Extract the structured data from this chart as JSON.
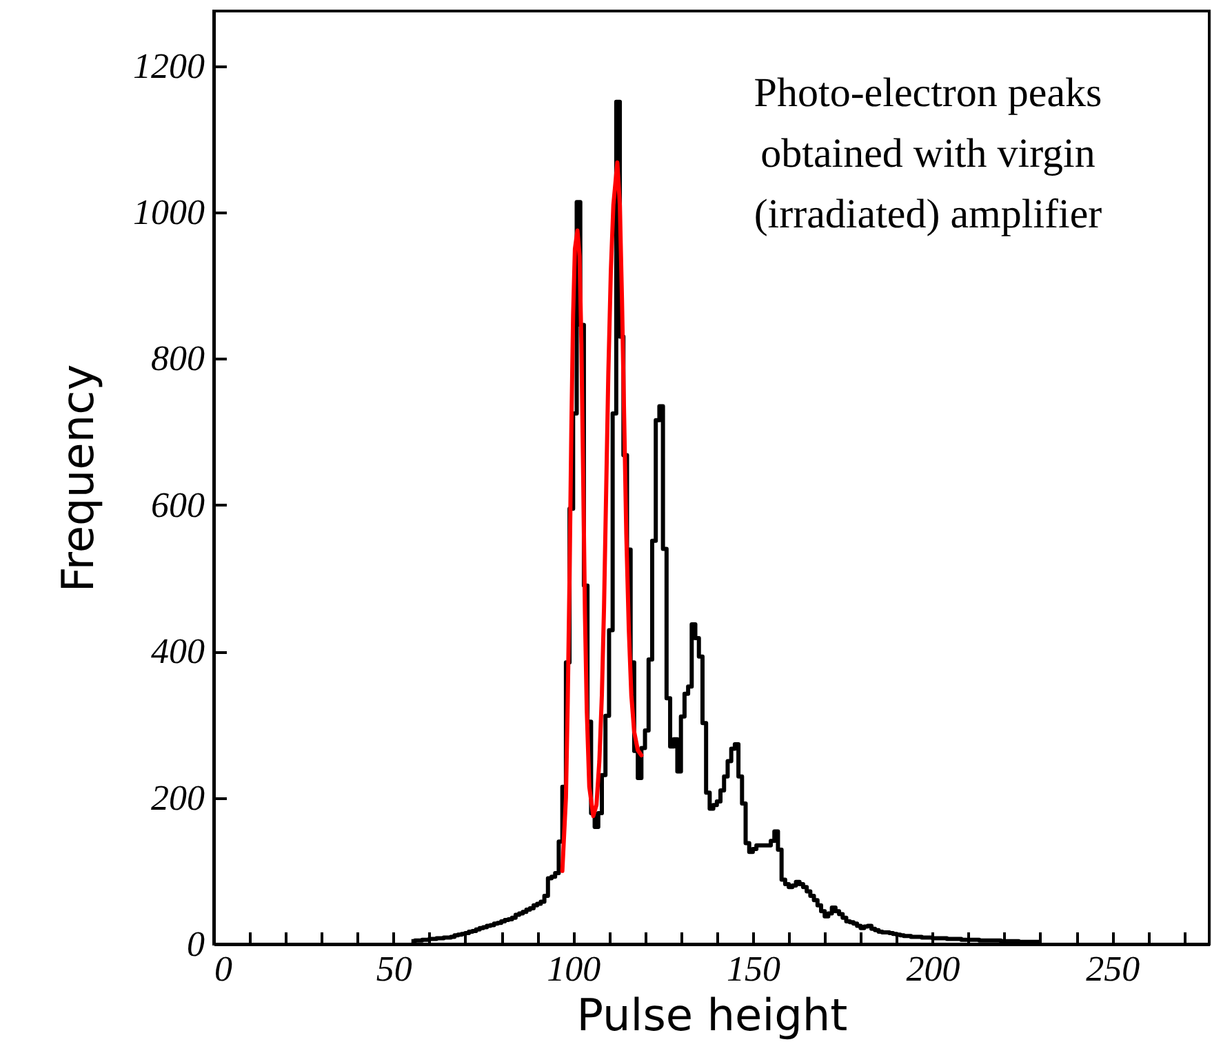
{
  "chart_data": {
    "type": "histogram",
    "xlabel": "Pulse height",
    "ylabel": "Frequency",
    "annotations": [
      "Photo-electron peaks",
      "obtained with virgin",
      "(irradiated) amplifier"
    ],
    "xlim": [
      0,
      277
    ],
    "ylim": [
      0,
      1275
    ],
    "grid": false,
    "xticks": [
      0,
      {
        "value": 10,
        "label": null
      },
      {
        "value": 20,
        "label": null
      },
      {
        "value": 30,
        "label": null
      },
      {
        "value": 40,
        "label": null
      },
      50,
      {
        "value": 60,
        "label": null
      },
      {
        "value": 70,
        "label": null
      },
      {
        "value": 80,
        "label": null
      },
      {
        "value": 90,
        "label": null
      },
      100,
      {
        "value": 110,
        "label": null
      },
      {
        "value": 120,
        "label": null
      },
      {
        "value": 130,
        "label": null
      },
      {
        "value": 140,
        "label": null
      },
      150,
      {
        "value": 160,
        "label": null
      },
      {
        "value": 170,
        "label": null
      },
      {
        "value": 180,
        "label": null
      },
      {
        "value": 190,
        "label": null
      },
      200,
      {
        "value": 210,
        "label": null
      },
      {
        "value": 220,
        "label": null
      },
      {
        "value": 230,
        "label": null
      },
      {
        "value": 240,
        "label": null
      },
      250,
      {
        "value": 260,
        "label": null
      },
      {
        "value": 270,
        "label": null
      }
    ],
    "yticks": [
      0,
      200,
      400,
      600,
      800,
      1000,
      1200
    ],
    "bins": [
      55,
      56,
      57,
      58,
      59,
      60,
      61,
      62,
      63,
      64,
      65,
      66,
      67,
      68,
      69,
      70,
      71,
      72,
      73,
      74,
      75,
      76,
      77,
      78,
      79,
      80,
      81,
      82,
      83,
      84,
      85,
      86,
      87,
      88,
      89,
      90,
      91,
      92,
      93,
      94,
      95,
      96,
      97,
      98,
      99,
      100,
      101,
      102,
      103,
      104,
      105,
      106,
      107,
      108,
      109,
      110,
      111,
      112,
      113,
      114,
      115,
      116,
      117,
      118,
      119,
      120,
      121,
      122,
      123,
      124,
      125,
      126,
      127,
      128,
      129,
      130,
      131,
      132,
      133,
      134,
      135,
      136,
      137,
      138,
      139,
      140,
      141,
      142,
      143,
      144,
      145,
      146,
      147,
      148,
      149,
      150,
      151,
      152,
      153,
      154,
      155,
      156,
      157,
      158,
      159,
      160,
      161,
      162,
      163,
      164,
      165,
      166,
      167,
      168,
      169,
      170,
      171,
      172,
      173,
      174,
      175,
      176,
      177,
      178,
      179,
      180,
      181,
      182,
      183,
      184,
      185,
      186,
      187,
      188,
      189,
      190,
      191,
      192,
      193,
      194,
      195,
      196,
      197,
      198,
      199,
      200,
      201,
      202,
      203,
      204,
      205,
      206,
      207,
      208,
      209,
      210,
      211,
      212,
      213,
      214,
      215,
      216,
      217,
      218,
      219,
      220,
      221,
      222,
      223,
      224,
      225,
      226,
      227,
      228,
      229,
      230
    ],
    "series": [
      {
        "color": "#000000",
        "values": [
          4,
          5,
          5,
          6,
          6,
          7,
          7,
          8,
          8,
          9,
          9,
          10,
          12,
          13,
          14,
          15,
          17,
          18,
          20,
          22,
          23,
          25,
          26,
          28,
          29,
          31,
          33,
          34,
          36,
          40,
          42,
          44,
          47,
          49,
          53,
          55,
          58,
          66,
          90,
          92,
          97,
          140,
          215,
          385,
          595,
          725,
          1014,
          846,
          490,
          304,
          179,
          160,
          179,
          231,
          312,
          429,
          725,
          1151,
          830,
          668,
          539,
          385,
          264,
          227,
          268,
          292,
          389,
          551,
          716,
          735,
          540,
          336,
          270,
          280,
          236,
          311,
          342,
          352,
          437,
          418,
          393,
          302,
          207,
          185,
          190,
          195,
          210,
          229,
          250,
          267,
          273,
          229,
          192,
          138,
          126,
          130,
          135,
          135,
          135,
          135,
          141,
          154,
          129,
          88,
          82,
          78,
          80,
          85,
          82,
          78,
          72,
          66,
          60,
          53,
          45,
          38,
          42,
          50,
          45,
          41,
          36,
          31,
          30,
          28,
          25,
          22,
          24,
          25,
          21,
          19,
          17,
          16,
          16,
          15,
          14,
          13,
          12,
          11,
          11,
          10,
          10,
          10,
          9,
          9,
          9,
          8,
          8,
          8,
          8,
          7,
          7,
          7,
          7,
          6,
          6,
          6,
          6,
          6,
          5,
          5,
          5,
          5,
          5,
          5,
          4,
          4,
          4,
          4,
          4,
          3,
          3,
          3,
          3,
          3,
          3
        ]
      },
      {
        "type": "line",
        "color": "#ff0000",
        "x": [
          97,
          98,
          98.5,
          99,
          99.5,
          100,
          100.5,
          101.2,
          101.8,
          102.3,
          102.8,
          103.3,
          103.8,
          104.5,
          105.6,
          106.5,
          107.3,
          108,
          108.6,
          109.2,
          109.8,
          110.5,
          111.2,
          112.3,
          113,
          113.6,
          114.2,
          114.8,
          115.5,
          116.2,
          117,
          118,
          119
        ],
        "values": [
          100,
          200,
          330,
          500,
          700,
          860,
          950,
          975,
          940,
          820,
          640,
          450,
          320,
          215,
          175,
          190,
          250,
          340,
          460,
          620,
          780,
          920,
          1010,
          1068,
          1010,
          880,
          720,
          560,
          430,
          340,
          290,
          265,
          258
        ]
      }
    ]
  }
}
